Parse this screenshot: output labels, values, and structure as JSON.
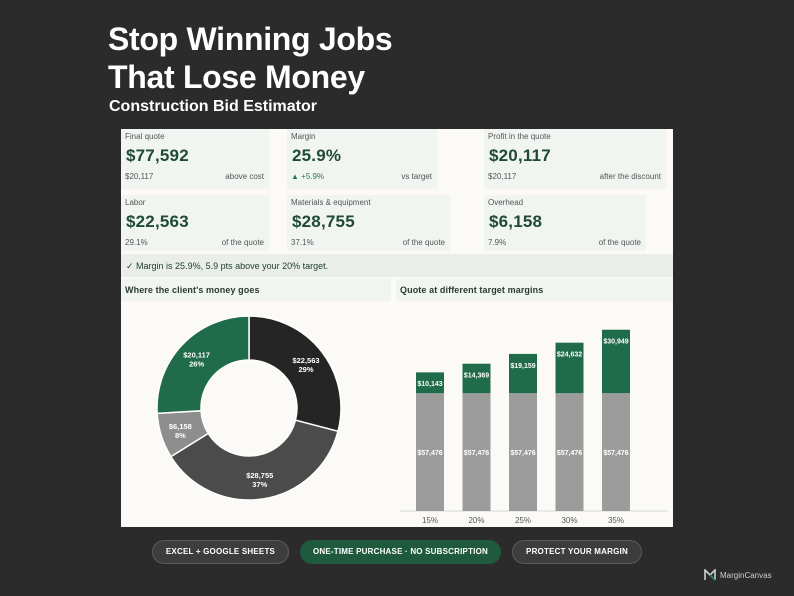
{
  "hero": {
    "title_line1": "Stop Winning Jobs",
    "title_line2": "That Lose Money",
    "subtitle": "Construction Bid Estimator"
  },
  "kpis": {
    "final_quote": {
      "label": "Final quote",
      "value": "$77,592",
      "sub": "$20,117",
      "note": "above cost"
    },
    "margin": {
      "label": "Margin",
      "value": "25.9%",
      "sub": "▲ +5.9%",
      "note": "vs target"
    },
    "profit": {
      "label": "Profit in the quote",
      "value": "$20,117",
      "sub": "$20,117",
      "note": "after the discount"
    },
    "labor": {
      "label": "Labor",
      "value": "$22,563",
      "sub": "29.1%",
      "note": "of the quote"
    },
    "materials": {
      "label": "Materials & equipment",
      "value": "$28,755",
      "sub": "37.1%",
      "note": "of the quote"
    },
    "overhead": {
      "label": "Overhead",
      "value": "$6,158",
      "sub": "7.9%",
      "note": "of the quote"
    }
  },
  "status": "✓  Margin is 25.9%, 5.9 pts above your 20% target.",
  "sections": {
    "donut_title": "Where the client's money goes",
    "bars_title": "Quote at different target margins"
  },
  "chart_data": [
    {
      "type": "pie",
      "title": "Where the client's money goes",
      "slices": [
        {
          "label": "$22,563",
          "pct_label": "29%",
          "value": 22563,
          "color": "#252525"
        },
        {
          "label": "$28,755",
          "pct_label": "37%",
          "value": 28755,
          "color": "#4b4b4b"
        },
        {
          "label": "$6,158",
          "pct_label": "8%",
          "value": 6158,
          "color": "#8e8e8e"
        },
        {
          "label": "$20,117",
          "pct_label": "26%",
          "value": 20117,
          "color": "#1f6b4a"
        }
      ]
    },
    {
      "type": "bar",
      "stacked": true,
      "title": "Quote at different target margins",
      "categories": [
        "15%",
        "20%",
        "25%",
        "30%",
        "35%"
      ],
      "series": [
        {
          "values": [
            57476,
            57476,
            57476,
            57476,
            57476
          ],
          "labels": [
            "$57,476",
            "$57,476",
            "$57,476",
            "$57,476",
            "$57,476"
          ],
          "color": "#9c9c9c"
        },
        {
          "values": [
            10143,
            14369,
            19159,
            24632,
            30949
          ],
          "labels": [
            "$10,143",
            "$14,369",
            "$19,159",
            "$24,632",
            "$30,949"
          ],
          "color": "#1f6b4a"
        }
      ],
      "ylim": [
        0,
        100000
      ]
    }
  ],
  "footer": {
    "pill1": "EXCEL + GOOGLE SHEETS",
    "pill2": "ONE-TIME PURCHASE · NO SUBSCRIPTION",
    "pill3": "PROTECT YOUR MARGIN",
    "brand": "MarginCanvas"
  }
}
